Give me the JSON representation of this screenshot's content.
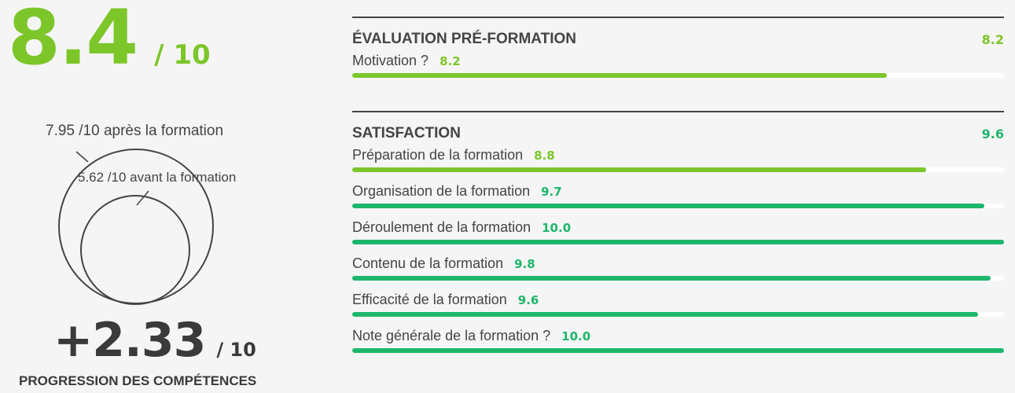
{
  "overall": {
    "score": "8.4",
    "denominator": "/ 10"
  },
  "competences": {
    "after_label": "7.95 /10 après la formation",
    "before_label": "5.62 /10 avant la formation",
    "after_value": 7.95,
    "before_value": 5.62,
    "progression": "+2.33",
    "progression_denominator": "/ 10",
    "progression_label": "PROGRESSION DES COMPÉTENCES"
  },
  "colors": {
    "light_green": "#7cc62a",
    "green": "#1db66b",
    "text": "#3a3a3a"
  },
  "pre_formation": {
    "title": "ÉVALUATION PRÉ-FORMATION",
    "score": "8.2",
    "items": [
      {
        "label": "Motivation ?",
        "value": "8.2",
        "fraction": 0.82,
        "color": "#7cc62a"
      }
    ]
  },
  "satisfaction": {
    "title": "SATISFACTION",
    "score": "9.6",
    "items": [
      {
        "label": "Préparation de la formation",
        "value": "8.8",
        "fraction": 0.88,
        "color": "#7cc62a"
      },
      {
        "label": "Organisation de la formation",
        "value": "9.7",
        "fraction": 0.97,
        "color": "#1db66b"
      },
      {
        "label": "Déroulement de la formation",
        "value": "10.0",
        "fraction": 1.0,
        "color": "#1db66b"
      },
      {
        "label": "Contenu de la formation",
        "value": "9.8",
        "fraction": 0.98,
        "color": "#1db66b"
      },
      {
        "label": "Efficacité de la formation",
        "value": "9.6",
        "fraction": 0.96,
        "color": "#1db66b"
      },
      {
        "label": "Note générale de la formation ?",
        "value": "10.0",
        "fraction": 1.0,
        "color": "#1db66b"
      }
    ]
  }
}
